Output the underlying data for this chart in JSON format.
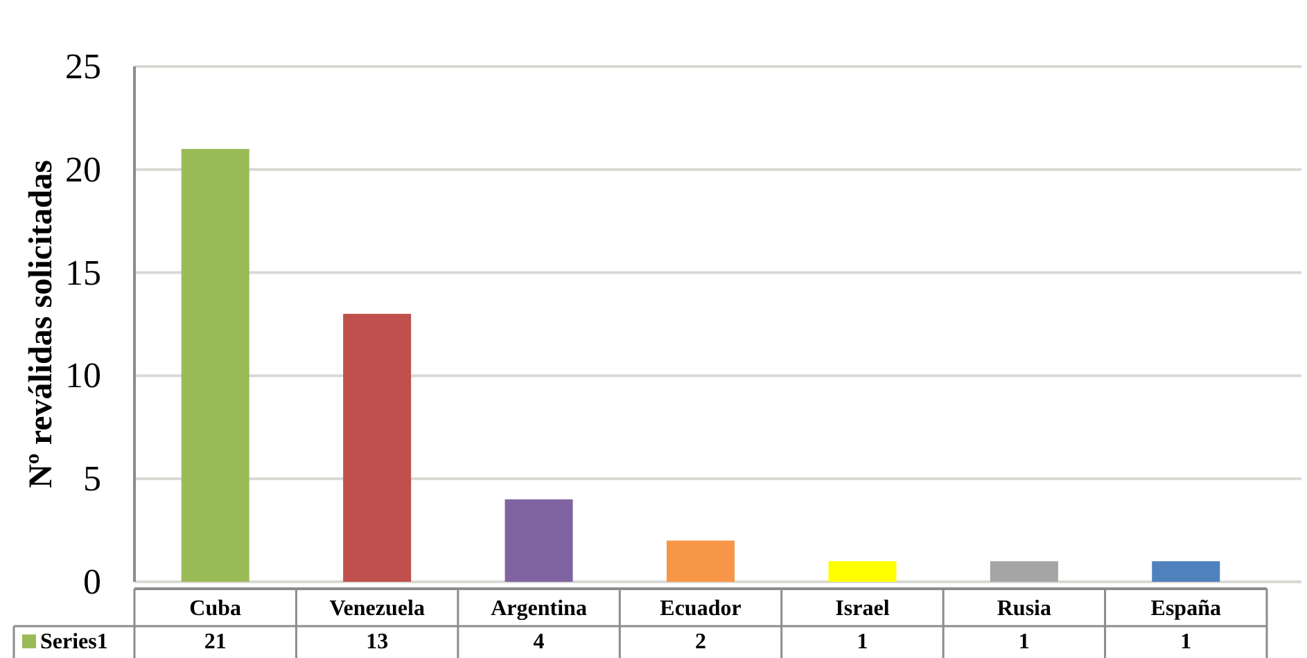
{
  "chart_data": {
    "type": "bar",
    "ylabel": "Nº reválidas solicitadas",
    "categories": [
      "Cuba",
      "Venezuela",
      "Argentina",
      "Ecuador",
      "Israel",
      "Rusia",
      "España"
    ],
    "series": [
      {
        "name": "Series1",
        "color": "#9bbb59",
        "colors": [
          "#9bbb59",
          "#c0504d",
          "#8064a2",
          "#f79646",
          "#ffff00",
          "#a5a5a5",
          "#4f81bd"
        ],
        "values": [
          21,
          13,
          4,
          2,
          1,
          1,
          1
        ]
      }
    ],
    "ylim": [
      0,
      25
    ],
    "yticks": [
      0,
      5,
      10,
      15,
      20,
      25
    ],
    "grid": "y",
    "data_labels": true,
    "legend": "bottom"
  }
}
